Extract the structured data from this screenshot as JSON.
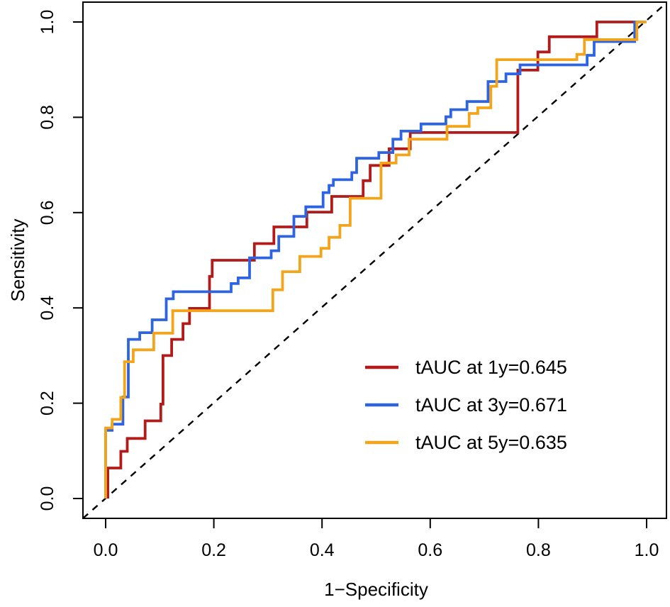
{
  "figure": {
    "background": "#ffffff",
    "axis_color": "#000000"
  },
  "chart_data": {
    "type": "line",
    "subtype": "roc-step-curves",
    "title": "",
    "xlabel": "1−Specificity",
    "ylabel": "Sensitivity",
    "xlim": [
      0.0,
      1.0
    ],
    "ylim": [
      0.0,
      1.0
    ],
    "xticks": [
      0.0,
      0.2,
      0.4,
      0.6,
      0.8,
      1.0
    ],
    "yticks": [
      0.0,
      0.2,
      0.4,
      0.6,
      0.8,
      1.0
    ],
    "xtick_labels": [
      "0.0",
      "0.2",
      "0.4",
      "0.6",
      "0.8",
      "1.0"
    ],
    "ytick_labels": [
      "0.0",
      "0.2",
      "0.4",
      "0.6",
      "0.8",
      "1.0"
    ],
    "grid": false,
    "legend_position": "inside-right-middle",
    "reference_line": {
      "type": "diagonal-chance-line",
      "style": "dashed",
      "color": "#000000"
    },
    "series": [
      {
        "name": "tAUC at 1y=0.645",
        "auc": 0.645,
        "color": "#b31b1b",
        "points": [
          [
            0.004,
            0.0
          ],
          [
            0.004,
            0.064
          ],
          [
            0.028,
            0.064
          ],
          [
            0.028,
            0.099
          ],
          [
            0.04,
            0.099
          ],
          [
            0.04,
            0.126
          ],
          [
            0.073,
            0.126
          ],
          [
            0.073,
            0.163
          ],
          [
            0.102,
            0.163
          ],
          [
            0.102,
            0.198
          ],
          [
            0.106,
            0.198
          ],
          [
            0.106,
            0.3
          ],
          [
            0.122,
            0.3
          ],
          [
            0.122,
            0.334
          ],
          [
            0.143,
            0.334
          ],
          [
            0.143,
            0.367
          ],
          [
            0.155,
            0.367
          ],
          [
            0.155,
            0.399
          ],
          [
            0.192,
            0.399
          ],
          [
            0.192,
            0.466
          ],
          [
            0.197,
            0.466
          ],
          [
            0.197,
            0.5
          ],
          [
            0.275,
            0.5
          ],
          [
            0.275,
            0.535
          ],
          [
            0.311,
            0.535
          ],
          [
            0.311,
            0.57
          ],
          [
            0.372,
            0.57
          ],
          [
            0.372,
            0.601
          ],
          [
            0.418,
            0.601
          ],
          [
            0.418,
            0.634
          ],
          [
            0.476,
            0.634
          ],
          [
            0.476,
            0.667
          ],
          [
            0.489,
            0.667
          ],
          [
            0.489,
            0.699
          ],
          [
            0.524,
            0.699
          ],
          [
            0.524,
            0.734
          ],
          [
            0.563,
            0.734
          ],
          [
            0.563,
            0.768
          ],
          [
            0.762,
            0.768
          ],
          [
            0.762,
            0.899
          ],
          [
            0.799,
            0.899
          ],
          [
            0.799,
            0.937
          ],
          [
            0.82,
            0.937
          ],
          [
            0.82,
            0.969
          ],
          [
            0.908,
            0.969
          ],
          [
            0.908,
            1.0
          ],
          [
            0.997,
            1.0
          ]
        ]
      },
      {
        "name": "tAUC at 3y=0.671",
        "auc": 0.671,
        "color": "#2e64e1",
        "points": [
          [
            0.0,
            0.0
          ],
          [
            0.0,
            0.143
          ],
          [
            0.012,
            0.143
          ],
          [
            0.012,
            0.156
          ],
          [
            0.032,
            0.156
          ],
          [
            0.032,
            0.213
          ],
          [
            0.042,
            0.213
          ],
          [
            0.042,
            0.334
          ],
          [
            0.063,
            0.334
          ],
          [
            0.063,
            0.348
          ],
          [
            0.086,
            0.348
          ],
          [
            0.086,
            0.375
          ],
          [
            0.112,
            0.375
          ],
          [
            0.112,
            0.419
          ],
          [
            0.125,
            0.419
          ],
          [
            0.125,
            0.434
          ],
          [
            0.232,
            0.434
          ],
          [
            0.232,
            0.451
          ],
          [
            0.245,
            0.451
          ],
          [
            0.245,
            0.463
          ],
          [
            0.266,
            0.463
          ],
          [
            0.266,
            0.505
          ],
          [
            0.306,
            0.505
          ],
          [
            0.306,
            0.52
          ],
          [
            0.32,
            0.52
          ],
          [
            0.32,
            0.55
          ],
          [
            0.348,
            0.55
          ],
          [
            0.348,
            0.592
          ],
          [
            0.37,
            0.592
          ],
          [
            0.37,
            0.612
          ],
          [
            0.402,
            0.612
          ],
          [
            0.402,
            0.642
          ],
          [
            0.413,
            0.642
          ],
          [
            0.413,
            0.657
          ],
          [
            0.421,
            0.657
          ],
          [
            0.421,
            0.669
          ],
          [
            0.455,
            0.669
          ],
          [
            0.455,
            0.684
          ],
          [
            0.464,
            0.684
          ],
          [
            0.464,
            0.714
          ],
          [
            0.505,
            0.714
          ],
          [
            0.505,
            0.726
          ],
          [
            0.531,
            0.726
          ],
          [
            0.531,
            0.754
          ],
          [
            0.546,
            0.754
          ],
          [
            0.546,
            0.771
          ],
          [
            0.583,
            0.771
          ],
          [
            0.583,
            0.786
          ],
          [
            0.629,
            0.786
          ],
          [
            0.629,
            0.801
          ],
          [
            0.638,
            0.801
          ],
          [
            0.638,
            0.816
          ],
          [
            0.668,
            0.816
          ],
          [
            0.668,
            0.833
          ],
          [
            0.707,
            0.833
          ],
          [
            0.707,
            0.875
          ],
          [
            0.74,
            0.875
          ],
          [
            0.74,
            0.891
          ],
          [
            0.766,
            0.891
          ],
          [
            0.766,
            0.91
          ],
          [
            0.89,
            0.91
          ],
          [
            0.89,
            0.93
          ],
          [
            0.903,
            0.93
          ],
          [
            0.903,
            0.959
          ],
          [
            0.978,
            0.959
          ],
          [
            0.978,
            1.0
          ],
          [
            0.997,
            1.0
          ]
        ]
      },
      {
        "name": "tAUC at 5y=0.635",
        "auc": 0.635,
        "color": "#f2a51a",
        "points": [
          [
            0.0,
            0.0
          ],
          [
            0.0,
            0.148
          ],
          [
            0.012,
            0.148
          ],
          [
            0.012,
            0.166
          ],
          [
            0.028,
            0.166
          ],
          [
            0.028,
            0.212
          ],
          [
            0.035,
            0.212
          ],
          [
            0.035,
            0.287
          ],
          [
            0.051,
            0.287
          ],
          [
            0.051,
            0.312
          ],
          [
            0.089,
            0.312
          ],
          [
            0.089,
            0.347
          ],
          [
            0.124,
            0.347
          ],
          [
            0.124,
            0.394
          ],
          [
            0.309,
            0.394
          ],
          [
            0.309,
            0.438
          ],
          [
            0.327,
            0.438
          ],
          [
            0.327,
            0.476
          ],
          [
            0.359,
            0.476
          ],
          [
            0.359,
            0.508
          ],
          [
            0.398,
            0.508
          ],
          [
            0.398,
            0.525
          ],
          [
            0.413,
            0.525
          ],
          [
            0.413,
            0.548
          ],
          [
            0.433,
            0.548
          ],
          [
            0.433,
            0.573
          ],
          [
            0.452,
            0.573
          ],
          [
            0.452,
            0.63
          ],
          [
            0.509,
            0.63
          ],
          [
            0.509,
            0.704
          ],
          [
            0.537,
            0.704
          ],
          [
            0.537,
            0.721
          ],
          [
            0.561,
            0.721
          ],
          [
            0.561,
            0.754
          ],
          [
            0.631,
            0.754
          ],
          [
            0.631,
            0.781
          ],
          [
            0.672,
            0.781
          ],
          [
            0.672,
            0.808
          ],
          [
            0.688,
            0.808
          ],
          [
            0.688,
            0.82
          ],
          [
            0.712,
            0.82
          ],
          [
            0.712,
            0.865
          ],
          [
            0.723,
            0.865
          ],
          [
            0.723,
            0.921
          ],
          [
            0.871,
            0.921
          ],
          [
            0.871,
            0.932
          ],
          [
            0.885,
            0.932
          ],
          [
            0.885,
            0.963
          ],
          [
            0.982,
            0.963
          ],
          [
            0.982,
            1.0
          ],
          [
            1.0,
            1.0
          ]
        ]
      }
    ],
    "legend": {
      "items": [
        {
          "label": "tAUC at 1y=0.645",
          "color": "#b31b1b"
        },
        {
          "label": "tAUC at 3y=0.671",
          "color": "#2e64e1"
        },
        {
          "label": "tAUC at 5y=0.635",
          "color": "#f2a51a"
        }
      ]
    }
  }
}
